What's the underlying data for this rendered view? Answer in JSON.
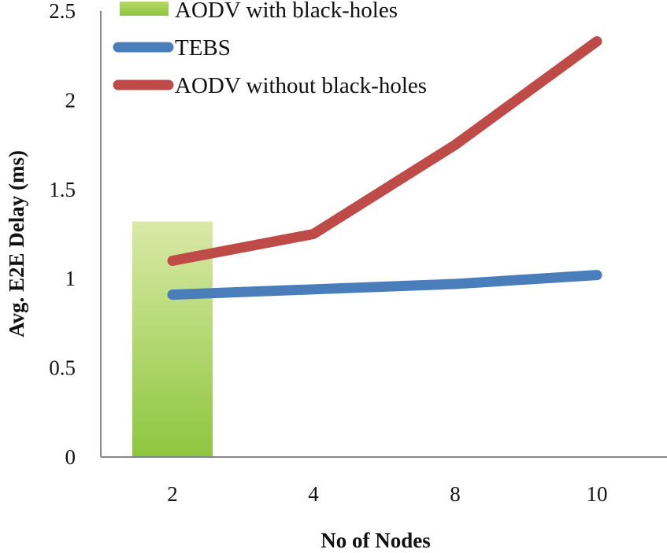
{
  "chart_data": {
    "type": "line",
    "xlabel": "No of Nodes",
    "ylabel": "Avg. E2E Delay (ms)",
    "categories": [
      "2",
      "4",
      "8",
      "10"
    ],
    "ylim": [
      0,
      2.5
    ],
    "yticks": [
      "0",
      "0.5",
      "1",
      "1.5",
      "2",
      "2.5"
    ],
    "grid": false,
    "legend_position": "top-left",
    "series": [
      {
        "name": "AODV with black-holes",
        "kind": "bar",
        "color": "#9ACD48",
        "values": [
          1.32,
          null,
          null,
          null
        ]
      },
      {
        "name": "TEBS",
        "kind": "line",
        "color": "#4A7EBB",
        "values": [
          0.91,
          0.94,
          0.97,
          1.02
        ]
      },
      {
        "name": "AODV without black-holes",
        "kind": "line",
        "color": "#BE4B48",
        "values": [
          1.1,
          1.25,
          1.75,
          2.33
        ]
      }
    ]
  }
}
